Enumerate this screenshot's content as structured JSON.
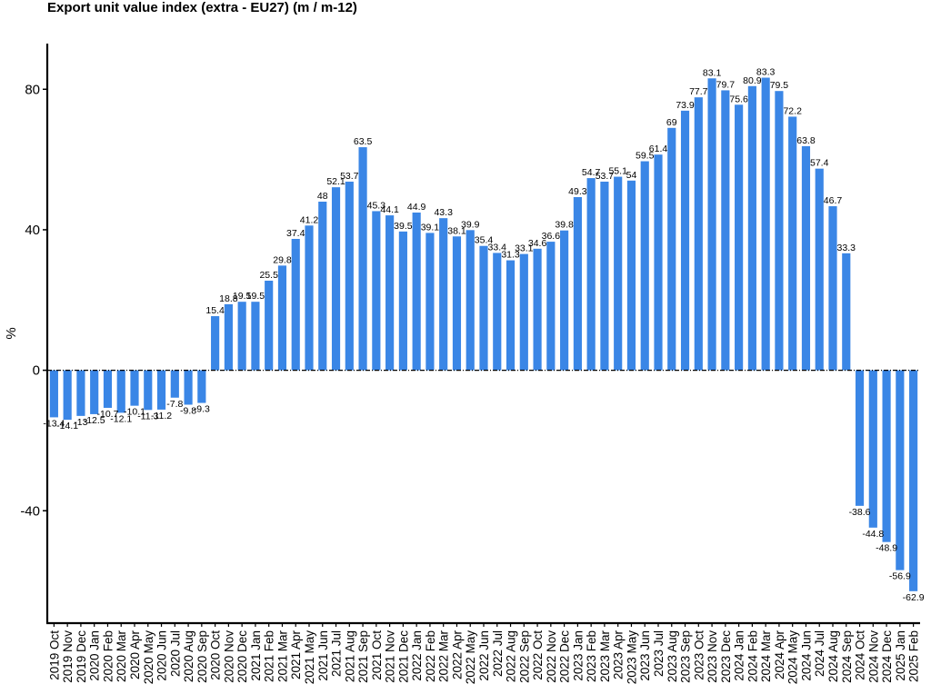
{
  "chart_data": {
    "type": "bar",
    "title": "Export unit value index (extra - EU27) (m / m-12)",
    "xlabel": "",
    "ylabel": "%",
    "ylim": [
      -72,
      93
    ],
    "yticks": [
      -40,
      0,
      40,
      80
    ],
    "grid": false,
    "bar_color": "#3a86e6",
    "zero_line": "dash-dot",
    "categories": [
      "2019 Oct",
      "2019 Nov",
      "2019 Dec",
      "2020 Jan",
      "2020 Feb",
      "2020 Mar",
      "2020 Apr",
      "2020 May",
      "2020 Jun",
      "2020 Jul",
      "2020 Aug",
      "2020 Sep",
      "2020 Oct",
      "2020 Nov",
      "2020 Dec",
      "2021 Jan",
      "2021 Feb",
      "2021 Mar",
      "2021 Apr",
      "2021 May",
      "2021 Jun",
      "2021 Jul",
      "2021 Aug",
      "2021 Sep",
      "2021 Oct",
      "2021 Nov",
      "2021 Dec",
      "2022 Jan",
      "2022 Feb",
      "2022 Mar",
      "2022 Apr",
      "2022 May",
      "2022 Jun",
      "2022 Jul",
      "2022 Aug",
      "2022 Sep",
      "2022 Oct",
      "2022 Nov",
      "2022 Dec",
      "2023 Jan",
      "2023 Feb",
      "2023 Mar",
      "2023 Apr",
      "2023 May",
      "2023 Jun",
      "2023 Jul",
      "2023 Aug",
      "2023 Sep",
      "2023 Oct",
      "2023 Nov",
      "2023 Dec",
      "2024 Jan",
      "2024 Feb",
      "2024 Mar",
      "2024 Apr",
      "2024 May",
      "2024 Jun",
      "2024 Jul",
      "2024 Aug",
      "2024 Sep",
      "2024 Oct",
      "2024 Nov",
      "2024 Dec",
      "2025 Jan",
      "2025 Feb"
    ],
    "values": [
      -13.4,
      -14.1,
      -13,
      -12.5,
      -10.7,
      -12.1,
      -10.1,
      -11.3,
      -11.2,
      -7.8,
      -9.8,
      -9.3,
      15.4,
      18.8,
      19.5,
      19.5,
      25.5,
      29.8,
      37.4,
      41.2,
      48,
      52.1,
      53.7,
      63.5,
      45.3,
      44.1,
      39.5,
      44.9,
      39.1,
      43.3,
      38.1,
      39.9,
      35.4,
      33.4,
      31.3,
      33.1,
      34.6,
      36.6,
      39.8,
      49.3,
      54.7,
      53.7,
      55.1,
      54,
      59.5,
      61.4,
      69,
      73.9,
      77.7,
      83.1,
      79.7,
      75.6,
      80.9,
      83.3,
      79.5,
      72.2,
      63.8,
      57.4,
      46.7,
      33.3,
      -38.6,
      -44.8,
      -48.9,
      -56.9,
      -62.9
    ]
  }
}
